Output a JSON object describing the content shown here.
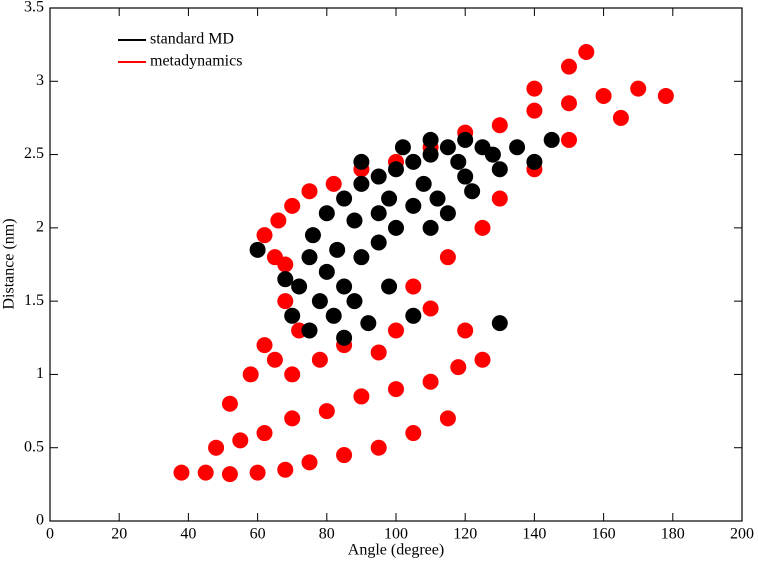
{
  "chart_data": {
    "type": "scatter",
    "xlabel": "Angle (degree)",
    "ylabel": "Distance (nm)",
    "xlim": [
      0,
      200
    ],
    "xticks": [
      0,
      20,
      40,
      60,
      80,
      100,
      120,
      140,
      160,
      180,
      200
    ],
    "ylim": [
      0,
      3.5
    ],
    "yticks": [
      0,
      0.5,
      1,
      1.5,
      2,
      2.5,
      3,
      3.5
    ],
    "legend": "upper-left",
    "series": [
      {
        "name": "standard MD",
        "color": "#000000",
        "x": [
          70,
          72,
          75,
          78,
          80,
          82,
          85,
          88,
          90,
          95,
          98,
          100,
          75,
          85,
          92,
          105,
          80,
          85,
          90,
          95,
          100,
          105,
          110,
          115,
          120,
          125,
          118,
          108,
          98,
          88,
          95,
          105,
          112,
          120,
          128,
          135,
          145,
          140,
          130,
          110,
          115,
          122,
          90,
          102,
          110,
          68,
          76,
          83,
          130,
          60
        ],
        "y": [
          1.4,
          1.6,
          1.3,
          1.5,
          1.7,
          1.4,
          1.6,
          1.5,
          1.8,
          1.9,
          1.6,
          2.0,
          1.8,
          1.25,
          1.35,
          1.4,
          2.1,
          2.2,
          2.3,
          2.35,
          2.4,
          2.45,
          2.5,
          2.55,
          2.6,
          2.55,
          2.45,
          2.3,
          2.2,
          2.05,
          2.1,
          2.15,
          2.2,
          2.35,
          2.5,
          2.55,
          2.6,
          2.45,
          2.4,
          2.0,
          2.1,
          2.25,
          2.45,
          2.55,
          2.6,
          1.65,
          1.95,
          1.85,
          1.35,
          1.85
        ]
      },
      {
        "name": "metadynamics",
        "color": "#ff0000",
        "x": [
          38,
          45,
          52,
          60,
          68,
          75,
          85,
          95,
          105,
          115,
          48,
          55,
          62,
          70,
          80,
          90,
          100,
          110,
          118,
          125,
          52,
          58,
          62,
          65,
          70,
          78,
          85,
          95,
          72,
          68,
          65,
          62,
          66,
          70,
          75,
          68,
          82,
          90,
          100,
          110,
          120,
          130,
          140,
          150,
          160,
          170,
          178,
          165,
          150,
          140,
          130,
          125,
          115,
          105,
          100,
          110,
          150,
          140,
          155,
          120
        ],
        "y": [
          0.33,
          0.33,
          0.32,
          0.33,
          0.35,
          0.4,
          0.45,
          0.5,
          0.6,
          0.7,
          0.5,
          0.55,
          0.6,
          0.7,
          0.75,
          0.85,
          0.9,
          0.95,
          1.05,
          1.1,
          0.8,
          1.0,
          1.2,
          1.1,
          1.0,
          1.1,
          1.2,
          1.15,
          1.3,
          1.5,
          1.8,
          1.95,
          2.05,
          2.15,
          2.25,
          1.75,
          2.3,
          2.4,
          2.45,
          2.55,
          2.65,
          2.7,
          2.8,
          2.85,
          2.9,
          2.95,
          2.9,
          2.75,
          2.6,
          2.4,
          2.2,
          2.0,
          1.8,
          1.6,
          1.3,
          1.45,
          3.1,
          2.95,
          3.2,
          1.3
        ]
      }
    ]
  }
}
